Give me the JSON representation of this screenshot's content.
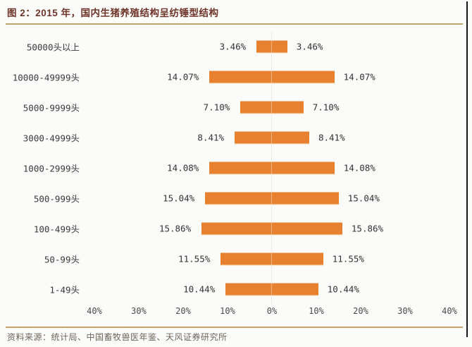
{
  "figure": {
    "title": "图 2：2015 年，国内生猪养殖结构呈纺锤型结构",
    "source": "资料来源：统计局、中国畜牧兽医年鉴、天风证券研究所"
  },
  "colors": {
    "bar": "#e8812f",
    "title_text": "#6e3428",
    "divider_gold": "#c0a468",
    "centerline": "#dcdcd6",
    "axis_text": "#4a4a4a",
    "source_text": "#6d655c",
    "page_edge": "#161616"
  },
  "chart_data": {
    "type": "bar",
    "orientation": "horizontal-mirrored-spindle",
    "title": "2015 年，国内生猪养殖结构呈纺锤型结构",
    "categories": [
      "50000头以上",
      "10000-49999头",
      "5000-9999头",
      "3000-4999头",
      "1000-2999头",
      "500-999头",
      "100-499头",
      "50-99头",
      "1-49头"
    ],
    "values": [
      3.46,
      14.07,
      7.1,
      8.41,
      14.08,
      15.04,
      15.86,
      11.55,
      10.44
    ],
    "value_labels": [
      "3.46%",
      "14.07%",
      "7.10%",
      "8.41%",
      "14.08%",
      "15.04%",
      "15.86%",
      "11.55%",
      "10.44%"
    ],
    "value_label_sides": "both",
    "xlabel": "",
    "ylabel": "",
    "xlim": [
      -40,
      40
    ],
    "axis_ticks": [
      "40%",
      "30%",
      "20%",
      "10%",
      "0%",
      "10%",
      "20%",
      "30%",
      "40%"
    ],
    "grid": false,
    "legend": null
  }
}
